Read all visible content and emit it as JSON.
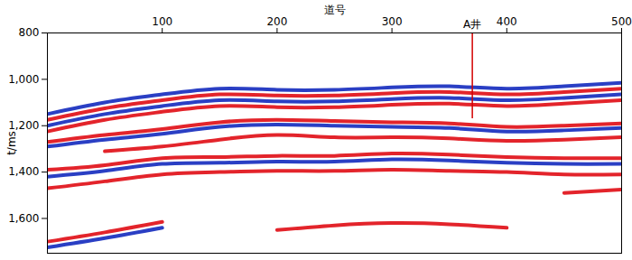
{
  "chart_data": {
    "type": "line",
    "x_label": "道号",
    "y_label": "t/ms",
    "xlim": [
      0,
      500
    ],
    "xticks": [
      100,
      200,
      300,
      400,
      500
    ],
    "ylim": [
      800,
      1750
    ],
    "yticks": [
      800,
      1000,
      1200,
      1400,
      1600
    ],
    "x": [
      0,
      50,
      100,
      150,
      200,
      250,
      300,
      350,
      400,
      450,
      500
    ],
    "series": [
      {
        "color": "#2a3fc4",
        "values": [
          1150,
          1100,
          1065,
          1040,
          1045,
          1045,
          1035,
          1030,
          1040,
          1030,
          1015
        ]
      },
      {
        "color": "#e3242b",
        "values": [
          1175,
          1125,
          1090,
          1065,
          1070,
          1070,
          1060,
          1055,
          1065,
          1055,
          1040
        ]
      },
      {
        "color": "#2a3fc4",
        "values": [
          1200,
          1150,
          1115,
          1090,
          1095,
          1095,
          1085,
          1080,
          1090,
          1080,
          1065
        ]
      },
      {
        "color": "#e3242b",
        "values": [
          1225,
          1175,
          1140,
          1115,
          1120,
          1120,
          1110,
          1105,
          1115,
          1105,
          1090
        ]
      },
      {
        "color": "#e3242b",
        "values": [
          1270,
          1240,
          1215,
          1185,
          1175,
          1180,
          1185,
          1190,
          1205,
          1200,
          1190
        ]
      },
      {
        "color": "#2a3fc4",
        "values": [
          1290,
          1260,
          1235,
          1205,
          1195,
          1200,
          1205,
          1210,
          1225,
          1220,
          1210
        ]
      },
      {
        "color": "#e3242b",
        "values": [
          null,
          1310,
          1290,
          1260,
          1240,
          1250,
          1250,
          1255,
          1265,
          1260,
          1250
        ]
      },
      {
        "color": "#e3242b",
        "values": [
          1390,
          1370,
          1340,
          1335,
          1330,
          1330,
          1320,
          1325,
          1335,
          1340,
          1340
        ]
      },
      {
        "color": "#2a3fc4",
        "values": [
          1420,
          1395,
          1365,
          1360,
          1355,
          1355,
          1345,
          1350,
          1360,
          1365,
          1365
        ]
      },
      {
        "color": "#e3242b",
        "values": [
          1470,
          1440,
          1410,
          1400,
          1395,
          1395,
          1390,
          1395,
          1400,
          1410,
          1410
        ]
      },
      {
        "color": "#e3242b",
        "values": [
          1700,
          1660,
          1615,
          null,
          null,
          null,
          null,
          null,
          null,
          null,
          null
        ]
      },
      {
        "color": "#2a3fc4",
        "values": [
          1725,
          1685,
          1640,
          null,
          null,
          null,
          null,
          null,
          null,
          null,
          null
        ]
      },
      {
        "color": "#e3242b",
        "values": [
          null,
          null,
          null,
          null,
          1650,
          1630,
          1620,
          1625,
          1640,
          null,
          null
        ]
      },
      {
        "color": "#e3242b",
        "values": [
          null,
          null,
          null,
          null,
          null,
          null,
          null,
          null,
          null,
          1490,
          1475
        ]
      }
    ],
    "annotations": [
      {
        "text": "A井",
        "x": 370,
        "y_from": 800,
        "y_to": 1170,
        "color": "#d40000"
      }
    ]
  }
}
